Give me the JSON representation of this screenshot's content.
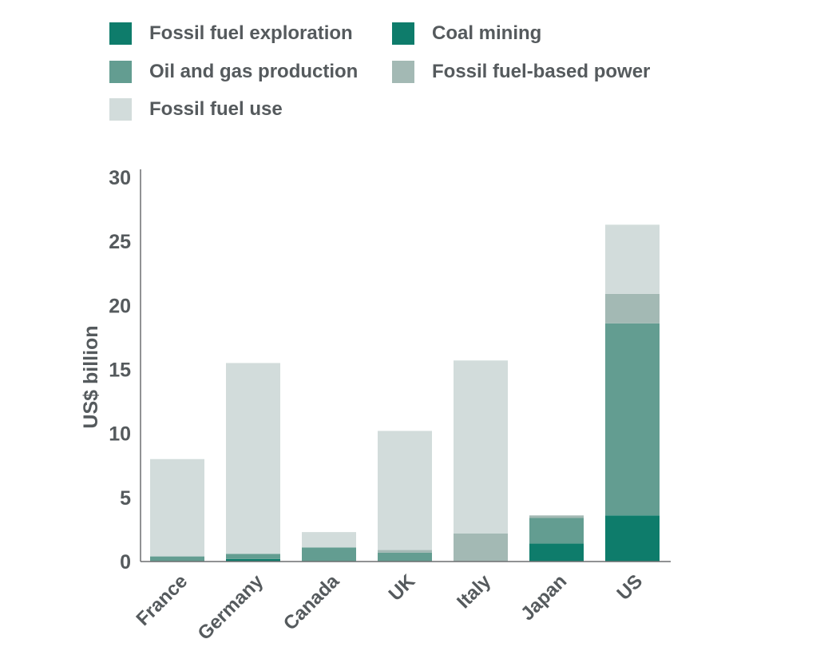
{
  "chart_data": {
    "type": "bar",
    "stacked": true,
    "categories": [
      "France",
      "Germany",
      "Canada",
      "UK",
      "Italy",
      "Japan",
      "US"
    ],
    "ylabel": "US$ billion",
    "ylim": [
      0,
      30
    ],
    "yticks": [
      0,
      5,
      10,
      15,
      20,
      25,
      30
    ],
    "grid": false,
    "legend_position": "top",
    "series": [
      {
        "name": "Fossil fuel exploration",
        "color": "#0e7c6b",
        "values": [
          0.0,
          0.2,
          0.0,
          0.0,
          0.0,
          0.0,
          0.0
        ]
      },
      {
        "name": "Coal mining",
        "color": "#0e7c6b",
        "values": [
          0.0,
          0.0,
          0.0,
          0.0,
          0.0,
          1.4,
          3.6
        ]
      },
      {
        "name": "Oil and gas production",
        "color": "#639d91",
        "values": [
          0.4,
          0.4,
          1.1,
          0.7,
          0.0,
          2.0,
          15.0
        ]
      },
      {
        "name": "Fossil fuel-based power",
        "color": "#a3b9b4",
        "values": [
          0.0,
          0.0,
          0.0,
          0.2,
          2.2,
          0.2,
          2.3
        ]
      },
      {
        "name": "Fossil fuel use",
        "color": "#d2dcdb",
        "values": [
          7.6,
          14.9,
          1.2,
          9.3,
          13.5,
          0.0,
          5.4
        ]
      }
    ]
  }
}
